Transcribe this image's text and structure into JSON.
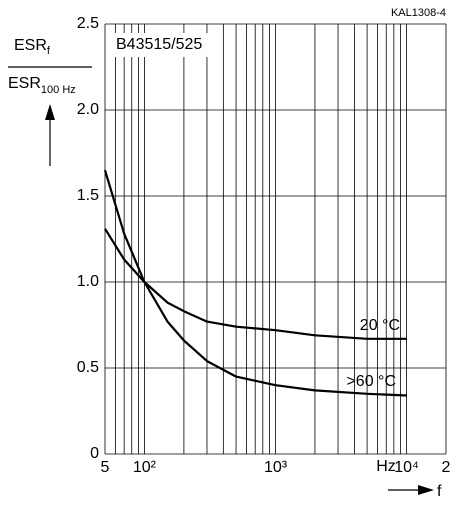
{
  "chart_data": {
    "type": "line",
    "code": "KAL1308-4",
    "annotation": "B43515/525",
    "y_label": {
      "numerator": "ESR",
      "numerator_sub": "f",
      "denominator": "ESR",
      "denominator_sub": "100 Hz"
    },
    "x_label": "f",
    "x_unit": "Hz",
    "log_x": true,
    "grid": true,
    "x": [
      50,
      70,
      100,
      150,
      200,
      300,
      500,
      1000,
      2000,
      5000,
      10000
    ],
    "series": [
      {
        "name": "20 °C",
        "color": "#000000",
        "values": [
          1.31,
          1.13,
          1.0,
          0.88,
          0.83,
          0.77,
          0.74,
          0.72,
          0.69,
          0.67,
          0.67
        ]
      },
      {
        "name": ">60 °C",
        "color": "#000000",
        "values": [
          1.65,
          1.28,
          1.0,
          0.77,
          0.66,
          0.54,
          0.45,
          0.4,
          0.37,
          0.35,
          0.34
        ]
      }
    ],
    "xlim": [
      50,
      20000
    ],
    "xticks": [
      {
        "value": 50,
        "label": "5"
      },
      {
        "value": 100,
        "label": "10²"
      },
      {
        "value": 1000,
        "label": "10³"
      },
      {
        "value": 10000,
        "label": "10⁴"
      },
      {
        "value": 20000,
        "label": "2"
      }
    ],
    "x_minor_ticks": [
      60,
      70,
      80,
      90,
      200,
      300,
      400,
      500,
      600,
      700,
      800,
      900,
      2000,
      3000,
      4000,
      5000,
      6000,
      7000,
      8000,
      9000
    ],
    "ylim": [
      0,
      2.5
    ],
    "yticks": [
      0,
      0.5,
      {
        "value": 1,
        "label": "1.0"
      },
      1.5,
      {
        "value": 2,
        "label": "2.0"
      },
      2.5
    ]
  }
}
